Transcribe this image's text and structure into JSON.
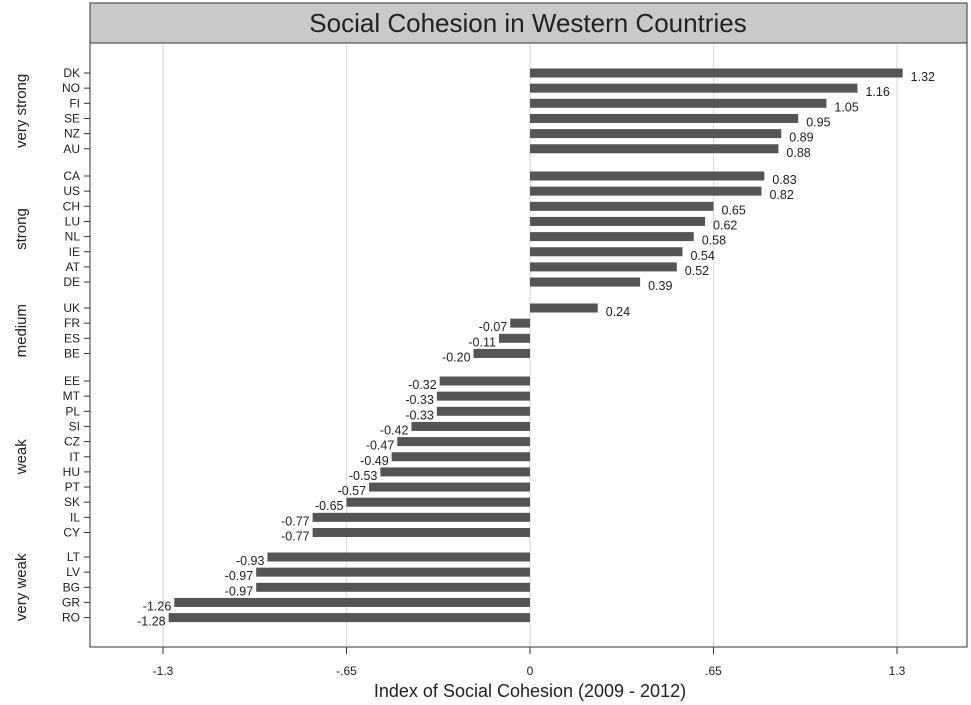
{
  "chart_data": {
    "type": "bar",
    "orientation": "horizontal",
    "title": "Social Cohesion in Western Countries",
    "xlabel": "Index of Social Cohesion (2009 - 2012)",
    "ylabel": "",
    "xlim": [
      -1.3,
      1.3
    ],
    "xticks": [
      -1.3,
      -0.65,
      0,
      0.65,
      1.3
    ],
    "xtick_labels": [
      "-1.3",
      "-.65",
      "0",
      ".65",
      "1.3"
    ],
    "grid": "vertical",
    "bar_color": "#555555",
    "header_color": "#c9c9c9",
    "groups": [
      {
        "name": "very strong",
        "categories": [
          "DK",
          "NO",
          "FI",
          "SE",
          "NZ",
          "AU"
        ],
        "values": [
          1.32,
          1.16,
          1.05,
          0.95,
          0.89,
          0.88
        ],
        "labels": [
          "1.32",
          "1.16",
          "1.05",
          "0.95",
          "0.89",
          "0.88"
        ]
      },
      {
        "name": "strong",
        "categories": [
          "CA",
          "US",
          "CH",
          "LU",
          "NL",
          "IE",
          "AT",
          "DE"
        ],
        "values": [
          0.83,
          0.82,
          0.65,
          0.62,
          0.58,
          0.54,
          0.52,
          0.39
        ],
        "labels": [
          "0.83",
          "0.82",
          "0.65",
          "0.62",
          "0.58",
          "0.54",
          "0.52",
          "0.39"
        ]
      },
      {
        "name": "medium",
        "categories": [
          "UK",
          "FR",
          "ES",
          "BE"
        ],
        "values": [
          0.24,
          -0.07,
          -0.11,
          -0.2
        ],
        "labels": [
          "0.24",
          "-0.07",
          "-0.11",
          "-0.20"
        ]
      },
      {
        "name": "weak",
        "categories": [
          "EE",
          "MT",
          "PL",
          "SI",
          "CZ",
          "IT",
          "HU",
          "PT",
          "SK",
          "IL",
          "CY"
        ],
        "values": [
          -0.32,
          -0.33,
          -0.33,
          -0.42,
          -0.47,
          -0.49,
          -0.53,
          -0.57,
          -0.65,
          -0.77,
          -0.77
        ],
        "labels": [
          "-0.32",
          "-0.33",
          "-0.33",
          "-0.42",
          "-0.47",
          "-0.49",
          "-0.53",
          "-0.57",
          "-0.65",
          "-0.77",
          "-0.77"
        ]
      },
      {
        "name": "very weak",
        "categories": [
          "LT",
          "LV",
          "BG",
          "GR",
          "RO"
        ],
        "values": [
          -0.93,
          -0.97,
          -0.97,
          -1.26,
          -1.28
        ],
        "labels": [
          "-0.93",
          "-0.97",
          "-0.97",
          "-1.26",
          "-1.28"
        ]
      }
    ]
  }
}
